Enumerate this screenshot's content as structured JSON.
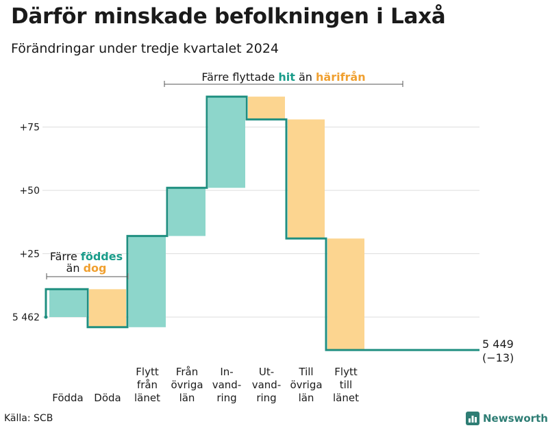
{
  "title": "Därför minskade befolkningen i Laxå",
  "subtitle": "Förändringar under tredje kvartalet 2024",
  "source": "Källa: SCB",
  "brand": "Newsworthy",
  "colors": {
    "increase": "#8dd6cb",
    "decrease": "#fcd590",
    "step_line": "#1f8f80",
    "hit_text": "#1a9c8a",
    "harifran_text": "#f0a030",
    "grid": "#dddddd"
  },
  "annotations": {
    "top": {
      "prefix": "Färre flyttade",
      "hit": "hit",
      "mid": "än",
      "from": "härifrån"
    },
    "left": {
      "line1_prefix": "Färre",
      "line1_word": "föddes",
      "line2_prefix": "än",
      "line2_word": "dog"
    }
  },
  "chart_data": {
    "type": "waterfall",
    "base_value": 5462,
    "end_value": 5449,
    "end_label": "5 449",
    "end_change_label": "(−13)",
    "y_tick_labels": [
      "5 462",
      "+25",
      "+50",
      "+75"
    ],
    "y_tick_values": [
      0,
      25,
      50,
      75
    ],
    "ylim": [
      -13,
      87
    ],
    "steps": [
      {
        "label_lines": [
          "Födda"
        ],
        "value": 11
      },
      {
        "label_lines": [
          "Döda"
        ],
        "value": -15
      },
      {
        "label_lines": [
          "Flytt",
          "från",
          "länet"
        ],
        "value": 36
      },
      {
        "label_lines": [
          "Från",
          "övriga",
          "län"
        ],
        "value": 19
      },
      {
        "label_lines": [
          "In-",
          "vand-",
          "ring"
        ],
        "value": 36
      },
      {
        "label_lines": [
          "Ut-",
          "vand-",
          "ring"
        ],
        "value": -9
      },
      {
        "label_lines": [
          "Till",
          "övriga",
          "län"
        ],
        "value": -47
      },
      {
        "label_lines": [
          "Flytt",
          "till",
          "länet"
        ],
        "value": -44
      }
    ]
  }
}
